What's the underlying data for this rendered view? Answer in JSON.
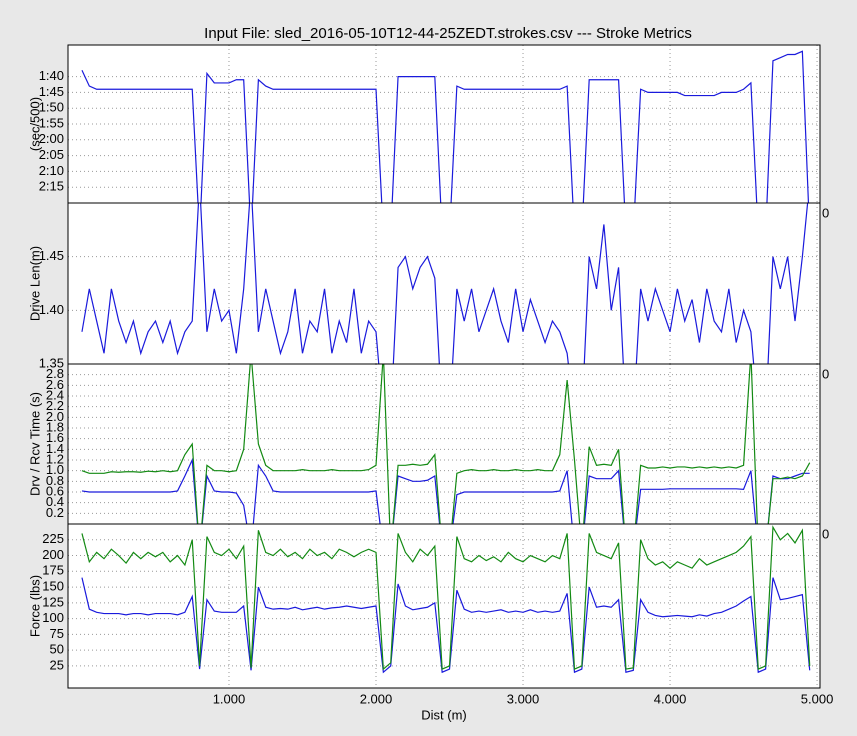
{
  "chart_data": [
    {
      "type": "line",
      "title": "Input File:  sled_2016-05-10T12-44-25ZEDT.strokes.csv --- Stroke Metrics",
      "ylabel": "(sec/500)",
      "x": [
        0,
        50,
        100,
        150,
        200,
        250,
        300,
        350,
        400,
        450,
        500,
        550,
        600,
        650,
        700,
        750,
        800,
        850,
        900,
        950,
        1000,
        1050,
        1100,
        1150,
        1200,
        1250,
        1300,
        1350,
        1400,
        1450,
        1500,
        1550,
        1600,
        1650,
        1700,
        1750,
        1800,
        1850,
        1900,
        1950,
        2000,
        2050,
        2100,
        2150,
        2200,
        2250,
        2300,
        2350,
        2400,
        2450,
        2500,
        2550,
        2600,
        2650,
        2700,
        2750,
        2800,
        2850,
        2900,
        2950,
        3000,
        3050,
        3100,
        3150,
        3200,
        3250,
        3300,
        3350,
        3400,
        3450,
        3500,
        3550,
        3600,
        3650,
        3700,
        3750,
        3800,
        3850,
        3900,
        3950,
        4000,
        4050,
        4100,
        4150,
        4200,
        4250,
        4300,
        4350,
        4400,
        4450,
        4500,
        4550,
        4600,
        4650,
        4700,
        4750,
        4800,
        4850,
        4900,
        4950
      ],
      "xlim": [
        -95,
        5020
      ],
      "xticks": [
        {
          "value": 1000,
          "label": "1.000"
        },
        {
          "value": 2000,
          "label": "2.000"
        },
        {
          "value": 3000,
          "label": "3.000"
        },
        {
          "value": 4000,
          "label": "4.000"
        },
        {
          "value": 5000,
          "label": "5.000"
        }
      ],
      "ylim": [
        140,
        90
      ],
      "yticks": [
        {
          "value": 100,
          "label": "1:40"
        },
        {
          "value": 105,
          "label": "1:45"
        },
        {
          "value": 110,
          "label": "1:50"
        },
        {
          "value": 115,
          "label": "1:55"
        },
        {
          "value": 120,
          "label": "2:00"
        },
        {
          "value": 125,
          "label": "2:05"
        },
        {
          "value": 130,
          "label": "2:10"
        },
        {
          "value": 135,
          "label": "2:15"
        }
      ],
      "grid": true,
      "series": [
        {
          "color": "#1a1adc",
          "values": [
            98,
            103,
            104,
            104,
            104,
            104,
            104,
            104,
            104,
            104,
            104,
            104,
            104,
            104,
            104,
            104,
            150,
            99,
            102,
            102,
            102,
            101,
            101,
            150,
            101,
            103,
            104,
            104,
            104,
            104,
            104,
            104,
            104,
            104,
            104,
            104,
            104,
            104,
            104,
            104,
            104,
            150,
            150,
            100,
            100,
            100,
            100,
            100,
            100,
            150,
            150,
            103,
            104,
            104,
            104,
            104,
            104,
            104,
            104,
            104,
            104,
            104,
            104,
            104,
            104,
            104,
            103,
            150,
            150,
            101,
            101,
            101,
            101,
            101,
            150,
            150,
            104,
            105,
            105,
            105,
            105,
            105,
            106,
            106,
            106,
            106,
            106,
            105,
            105,
            105,
            104,
            102,
            150,
            150,
            95,
            94,
            93,
            93,
            92,
            150
          ]
        }
      ]
    },
    {
      "type": "line",
      "ylabel": "Drive Len(m)",
      "corner_label": "0",
      "x": [
        0,
        50,
        100,
        150,
        200,
        250,
        300,
        350,
        400,
        450,
        500,
        550,
        600,
        650,
        700,
        750,
        800,
        850,
        900,
        950,
        1000,
        1050,
        1100,
        1150,
        1200,
        1250,
        1300,
        1350,
        1400,
        1450,
        1500,
        1550,
        1600,
        1650,
        1700,
        1750,
        1800,
        1850,
        1900,
        1950,
        2000,
        2050,
        2100,
        2150,
        2200,
        2250,
        2300,
        2350,
        2400,
        2450,
        2500,
        2550,
        2600,
        2650,
        2700,
        2750,
        2800,
        2850,
        2900,
        2950,
        3000,
        3050,
        3100,
        3150,
        3200,
        3250,
        3300,
        3350,
        3400,
        3450,
        3500,
        3550,
        3600,
        3650,
        3700,
        3750,
        3800,
        3850,
        3900,
        3950,
        4000,
        4050,
        4100,
        4150,
        4200,
        4250,
        4300,
        4350,
        4400,
        4450,
        4500,
        4550,
        4600,
        4650,
        4700,
        4750,
        4800,
        4850,
        4900,
        4950
      ],
      "xlim": [
        -95,
        5020
      ],
      "xticks": [
        1000,
        2000,
        3000,
        4000,
        5000
      ],
      "ylim": [
        1.35,
        1.5
      ],
      "yticks": [
        1.35,
        {
          "value": 1.4,
          "label": "1.40"
        },
        1.45
      ],
      "grid": true,
      "series": [
        {
          "color": "#1a1adc",
          "values": [
            1.38,
            1.42,
            1.39,
            1.36,
            1.42,
            1.39,
            1.37,
            1.39,
            1.36,
            1.38,
            1.39,
            1.37,
            1.39,
            1.36,
            1.38,
            1.39,
            1.52,
            1.38,
            1.42,
            1.39,
            1.4,
            1.36,
            1.42,
            1.52,
            1.38,
            1.42,
            1.39,
            1.36,
            1.38,
            1.42,
            1.36,
            1.39,
            1.38,
            1.42,
            1.36,
            1.39,
            1.37,
            1.42,
            1.36,
            1.39,
            1.38,
            1.3,
            1.3,
            1.44,
            1.45,
            1.42,
            1.44,
            1.45,
            1.43,
            1.3,
            1.3,
            1.42,
            1.39,
            1.42,
            1.38,
            1.4,
            1.42,
            1.39,
            1.37,
            1.42,
            1.38,
            1.41,
            1.39,
            1.37,
            1.39,
            1.38,
            1.36,
            1.3,
            1.3,
            1.45,
            1.42,
            1.48,
            1.4,
            1.44,
            1.3,
            1.3,
            1.42,
            1.39,
            1.42,
            1.4,
            1.38,
            1.42,
            1.39,
            1.41,
            1.37,
            1.42,
            1.39,
            1.38,
            1.42,
            1.37,
            1.4,
            1.38,
            1.3,
            1.3,
            1.45,
            1.42,
            1.45,
            1.39,
            1.45,
            1.52
          ]
        }
      ]
    },
    {
      "type": "line",
      "ylabel": "Drv / Rcv Time (s)",
      "corner_label": "0",
      "x": [
        0,
        50,
        100,
        150,
        200,
        250,
        300,
        350,
        400,
        450,
        500,
        550,
        600,
        650,
        700,
        750,
        800,
        850,
        900,
        950,
        1000,
        1050,
        1100,
        1150,
        1200,
        1250,
        1300,
        1350,
        1400,
        1450,
        1500,
        1550,
        1600,
        1650,
        1700,
        1750,
        1800,
        1850,
        1900,
        1950,
        2000,
        2050,
        2100,
        2150,
        2200,
        2250,
        2300,
        2350,
        2400,
        2450,
        2500,
        2550,
        2600,
        2650,
        2700,
        2750,
        2800,
        2850,
        2900,
        2950,
        3000,
        3050,
        3100,
        3150,
        3200,
        3250,
        3300,
        3350,
        3400,
        3450,
        3500,
        3550,
        3600,
        3650,
        3700,
        3750,
        3800,
        3850,
        3900,
        3950,
        4000,
        4050,
        4100,
        4150,
        4200,
        4250,
        4300,
        4350,
        4400,
        4450,
        4500,
        4550,
        4600,
        4650,
        4700,
        4750,
        4800,
        4850,
        4900,
        4950
      ],
      "xlim": [
        -95,
        5020
      ],
      "xticks": [
        1000,
        2000,
        3000,
        4000,
        5000
      ],
      "ylim": [
        0,
        3
      ],
      "yticks": [
        0.2,
        0.4,
        0.6,
        0.8,
        {
          "value": 1,
          "label": "1.0"
        },
        1.2,
        1.4,
        1.6,
        1.8,
        {
          "value": 2,
          "label": "2.0"
        },
        2.2,
        2.4,
        2.6,
        2.8
      ],
      "grid": true,
      "series": [
        {
          "color": "#1a1adc",
          "values": [
            0.62,
            0.6,
            0.6,
            0.6,
            0.6,
            0.6,
            0.6,
            0.6,
            0.6,
            0.6,
            0.6,
            0.6,
            0.6,
            0.62,
            0.9,
            1.2,
            -0.5,
            0.9,
            0.62,
            0.6,
            0.6,
            0.58,
            0.35,
            -0.5,
            1.1,
            0.9,
            0.62,
            0.6,
            0.6,
            0.6,
            0.6,
            0.6,
            0.6,
            0.6,
            0.6,
            0.6,
            0.6,
            0.6,
            0.6,
            0.6,
            0.62,
            -0.5,
            -0.5,
            0.9,
            0.85,
            0.8,
            0.8,
            0.82,
            0.9,
            -0.5,
            -0.5,
            0.55,
            0.6,
            0.6,
            0.6,
            0.6,
            0.6,
            0.6,
            0.6,
            0.6,
            0.6,
            0.6,
            0.6,
            0.6,
            0.6,
            0.62,
            1.0,
            -0.5,
            -0.5,
            0.9,
            0.85,
            0.85,
            0.85,
            1.0,
            -0.5,
            -0.5,
            0.65,
            0.65,
            0.65,
            0.65,
            0.66,
            0.66,
            0.66,
            0.66,
            0.66,
            0.66,
            0.66,
            0.66,
            0.66,
            0.66,
            0.65,
            1.0,
            -0.5,
            -0.5,
            0.9,
            0.85,
            0.85,
            0.9,
            0.95,
            0.95
          ]
        },
        {
          "color": "#138a13",
          "values": [
            1.0,
            0.95,
            0.95,
            0.95,
            0.98,
            0.97,
            0.98,
            0.98,
            0.97,
            0.99,
            0.98,
            1.0,
            0.98,
            1.0,
            1.3,
            1.5,
            -0.5,
            1.1,
            1.0,
            1.0,
            0.98,
            1.0,
            1.4,
            3.2,
            1.5,
            1.1,
            1.0,
            1.0,
            1.0,
            1.0,
            1.02,
            1.0,
            1.0,
            1.0,
            1.02,
            1.0,
            1.0,
            1.0,
            1.0,
            1.02,
            1.1,
            3.2,
            -0.5,
            1.1,
            1.1,
            1.12,
            1.1,
            1.12,
            1.3,
            -0.5,
            -0.5,
            0.95,
            1.0,
            1.02,
            1.0,
            1.0,
            1.02,
            1.0,
            1.0,
            1.02,
            1.0,
            1.0,
            1.02,
            1.0,
            1.0,
            1.3,
            2.7,
            1.2,
            -0.5,
            1.45,
            1.1,
            1.12,
            1.1,
            1.4,
            -0.5,
            -0.5,
            1.1,
            1.05,
            1.05,
            1.07,
            1.05,
            1.07,
            1.07,
            1.05,
            1.07,
            1.05,
            1.07,
            1.05,
            1.07,
            1.05,
            1.1,
            3.2,
            -0.5,
            -0.5,
            0.85,
            0.85,
            0.88,
            0.85,
            0.9,
            1.15
          ]
        }
      ]
    },
    {
      "type": "line",
      "ylabel": "Force (lbs)",
      "xlabel": "Dist (m)",
      "corner_label": "0",
      "x": [
        0,
        50,
        100,
        150,
        200,
        250,
        300,
        350,
        400,
        450,
        500,
        550,
        600,
        650,
        700,
        750,
        800,
        850,
        900,
        950,
        1000,
        1050,
        1100,
        1150,
        1200,
        1250,
        1300,
        1350,
        1400,
        1450,
        1500,
        1550,
        1600,
        1650,
        1700,
        1750,
        1800,
        1850,
        1900,
        1950,
        2000,
        2050,
        2100,
        2150,
        2200,
        2250,
        2300,
        2350,
        2400,
        2450,
        2500,
        2550,
        2600,
        2650,
        2700,
        2750,
        2800,
        2850,
        2900,
        2950,
        3000,
        3050,
        3100,
        3150,
        3200,
        3250,
        3300,
        3350,
        3400,
        3450,
        3500,
        3550,
        3600,
        3650,
        3700,
        3750,
        3800,
        3850,
        3900,
        3950,
        4000,
        4050,
        4100,
        4150,
        4200,
        4250,
        4300,
        4350,
        4400,
        4450,
        4500,
        4550,
        4600,
        4650,
        4700,
        4750,
        4800,
        4850,
        4900,
        4950
      ],
      "xlim": [
        -95,
        5020
      ],
      "xticks": [
        {
          "value": 1000,
          "label": "1.000"
        },
        {
          "value": 2000,
          "label": "2.000"
        },
        {
          "value": 3000,
          "label": "3.000"
        },
        {
          "value": 4000,
          "label": "4.000"
        },
        {
          "value": 5000,
          "label": "5.000"
        }
      ],
      "ylim": [
        -10,
        250
      ],
      "yticks": [
        25,
        50,
        75,
        100,
        125,
        150,
        175,
        200,
        225
      ],
      "grid": true,
      "series": [
        {
          "color": "#1a1adc",
          "values": [
            165,
            115,
            110,
            108,
            108,
            108,
            106,
            108,
            108,
            106,
            108,
            108,
            108,
            106,
            110,
            135,
            20,
            130,
            112,
            110,
            110,
            110,
            120,
            18,
            150,
            118,
            115,
            116,
            115,
            118,
            114,
            116,
            118,
            115,
            117,
            118,
            120,
            118,
            116,
            118,
            120,
            15,
            25,
            155,
            120,
            114,
            116,
            118,
            125,
            15,
            20,
            145,
            115,
            110,
            112,
            110,
            112,
            114,
            110,
            112,
            110,
            114,
            110,
            112,
            110,
            112,
            140,
            15,
            20,
            150,
            118,
            120,
            118,
            130,
            15,
            18,
            130,
            110,
            105,
            103,
            104,
            105,
            104,
            103,
            106,
            104,
            108,
            110,
            115,
            120,
            128,
            135,
            15,
            20,
            165,
            130,
            132,
            135,
            138,
            18
          ]
        },
        {
          "color": "#138a13",
          "values": [
            235,
            190,
            205,
            195,
            210,
            200,
            188,
            205,
            195,
            205,
            198,
            205,
            190,
            200,
            185,
            225,
            25,
            230,
            205,
            200,
            210,
            195,
            215,
            22,
            240,
            205,
            200,
            210,
            198,
            205,
            195,
            210,
            200,
            205,
            195,
            210,
            205,
            198,
            205,
            210,
            205,
            20,
            30,
            235,
            205,
            190,
            210,
            200,
            215,
            20,
            25,
            230,
            195,
            190,
            200,
            192,
            198,
            190,
            205,
            195,
            190,
            200,
            195,
            190,
            200,
            195,
            235,
            20,
            25,
            235,
            205,
            200,
            195,
            220,
            20,
            22,
            225,
            195,
            185,
            190,
            180,
            190,
            185,
            180,
            195,
            185,
            190,
            195,
            200,
            205,
            215,
            230,
            20,
            25,
            245,
            225,
            235,
            220,
            240,
            25
          ]
        }
      ]
    }
  ]
}
